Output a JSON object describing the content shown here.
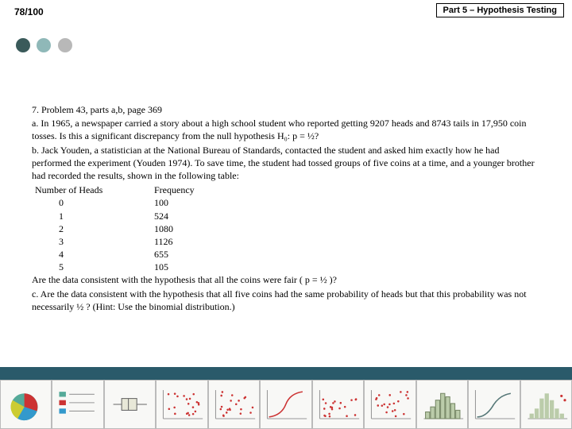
{
  "header": {
    "page_number": "78/100",
    "part_label": "Part 5 – Hypothesis Testing"
  },
  "dots": {
    "colors": [
      "#3a5a5a",
      "#8fb8b8",
      "#b8b8b8"
    ]
  },
  "problem": {
    "title": "7.   Problem 43, parts a,b, page 369",
    "part_a": "a. In 1965, a newspaper carried a story about a high school student who reported getting 9207 heads and 8743 tails in 17,950 coin tosses. Is this a significant discrepancy from the null hypothesis H₀: p = ½?",
    "part_b": "b. Jack Youden, a statistician at the National Bureau of Standards, contacted the student and asked him exactly how he had performed the experiment (Youden 1974). To save time, the student had tossed groups of five coins at a time, and a younger brother had recorded the results, shown in the following table:",
    "table_header_1": "Number of Heads",
    "table_header_2": "Frequency",
    "table_rows": [
      {
        "heads": "0",
        "freq": "100"
      },
      {
        "heads": "1",
        "freq": "524"
      },
      {
        "heads": "2",
        "freq": "1080"
      },
      {
        "heads": "3",
        "freq": "1126"
      },
      {
        "heads": "4",
        "freq": "655"
      },
      {
        "heads": "5",
        "freq": "105"
      }
    ],
    "question_b": "Are the data consistent with the hypothesis that all the coins were fair ( p = ½ )?",
    "part_c": "c. Are the data consistent with the hypothesis that all five coins had the same probability of heads but that this probability was not necessarily ½ ? (Hint:  Use the binomial distribution.)"
  },
  "footer_bar_color": "#2a5a6a",
  "thumbnails": [
    {
      "type": "pie"
    },
    {
      "type": "legend"
    },
    {
      "type": "boxplot"
    },
    {
      "type": "scatter"
    },
    {
      "type": "scatter"
    },
    {
      "type": "cdf"
    },
    {
      "type": "scatter"
    },
    {
      "type": "scatter"
    },
    {
      "type": "bars"
    },
    {
      "type": "curve"
    },
    {
      "type": "hist"
    }
  ]
}
